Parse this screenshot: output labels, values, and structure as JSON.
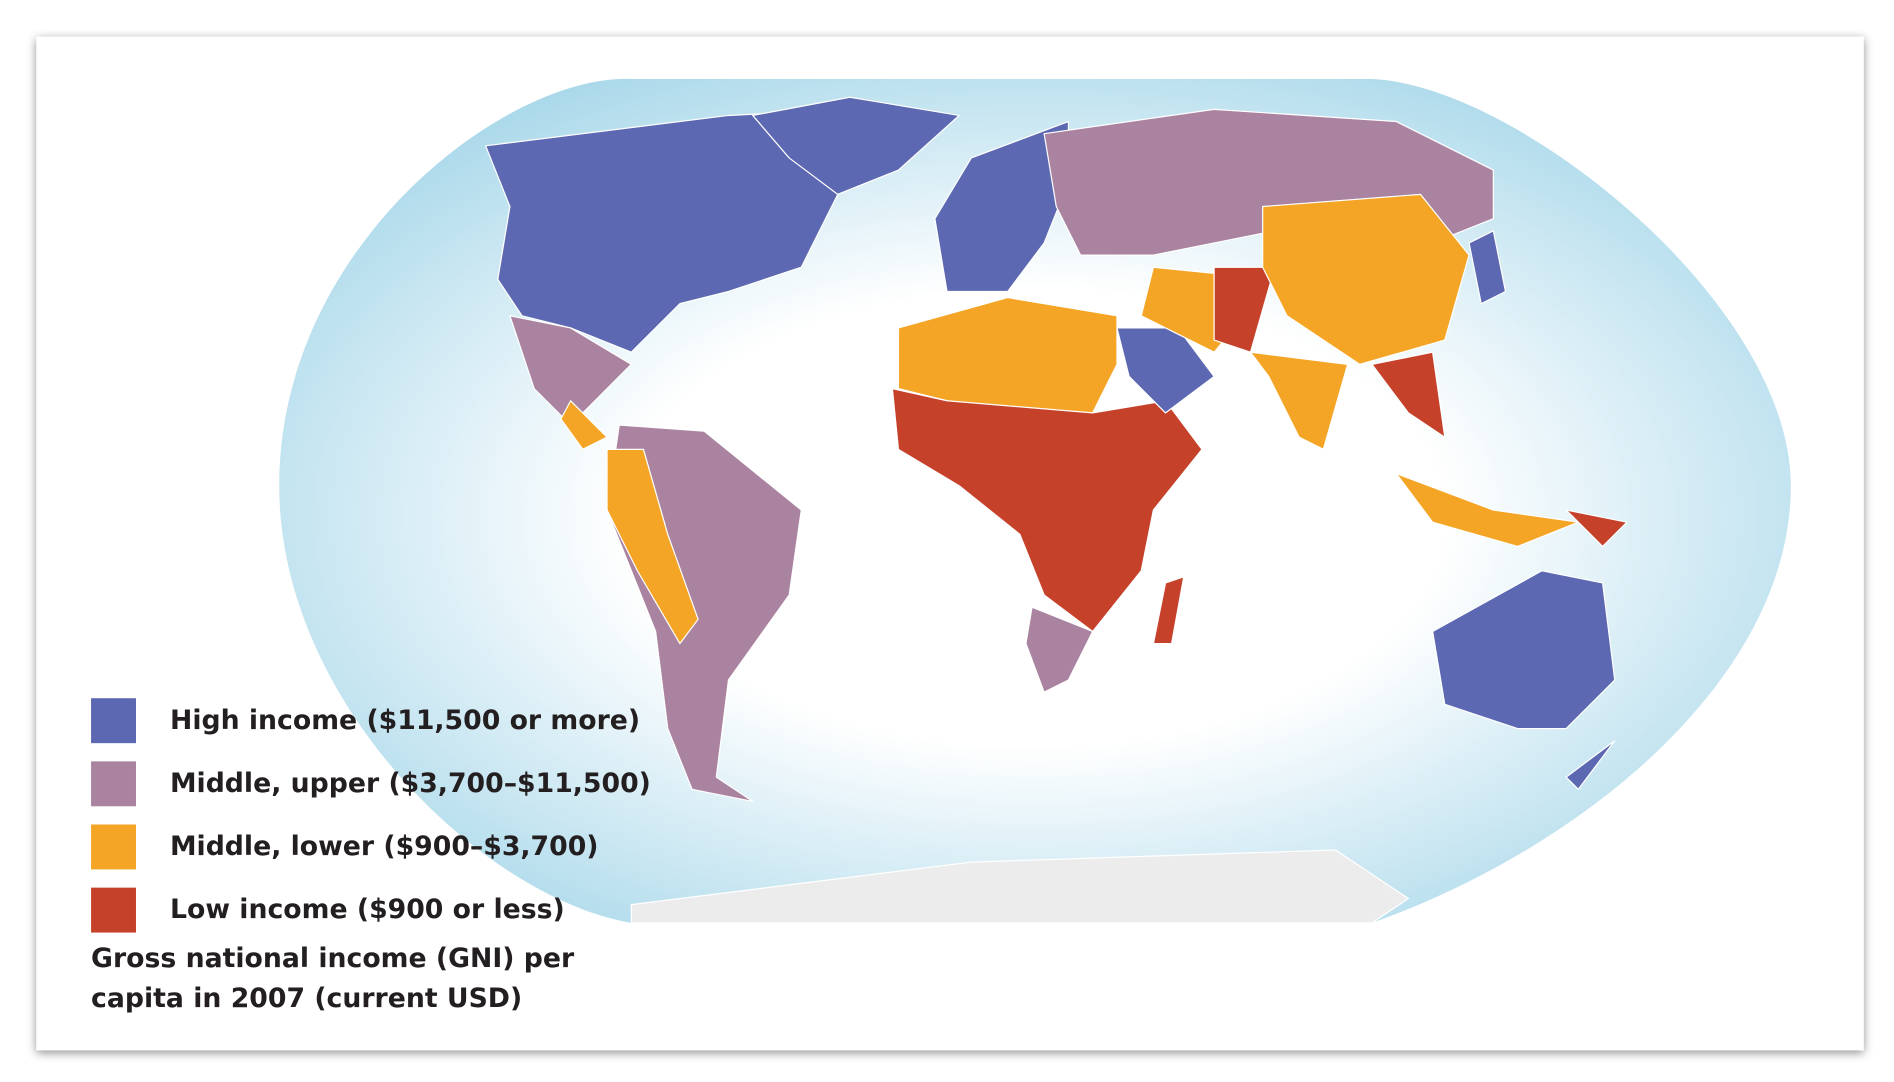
{
  "legend": [
    {
      "label": "High income ($11,500 or more)",
      "color": "#5c68b1"
    },
    {
      "label": "Middle, upper ($3,700–$11,500)",
      "color": "#a9839f"
    },
    {
      "label": "Middle, lower ($900–$3,700)",
      "color": "#f5a526"
    },
    {
      "label": "Low income ($900 or less)",
      "color": "#c6412a"
    }
  ],
  "caption": [
    "Gross national income (GNI) per",
    "capita in 2007 (current USD)"
  ]
}
